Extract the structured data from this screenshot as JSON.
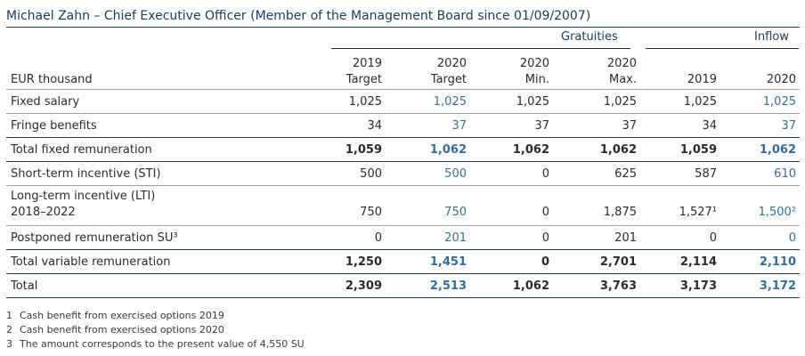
{
  "title": "Michael Zahn – Chief Executive Officer (Member of the Management Board since 01/09/2007)",
  "groups": {
    "gratuities": "Gratuities",
    "inflow": "Inflow"
  },
  "columns": [
    "EUR thousand",
    [
      "2019",
      "Target"
    ],
    [
      "2020",
      "Target"
    ],
    [
      "2020",
      "Min."
    ],
    [
      "2020",
      "Max."
    ],
    "2019",
    "2020"
  ],
  "rows": [
    {
      "label": "Fixed salary",
      "values": [
        "1,025",
        "1,025",
        "1,025",
        "1,025",
        "1,025",
        "1,025"
      ]
    },
    {
      "label": "Fringe benefits",
      "values": [
        "34",
        "37",
        "37",
        "37",
        "34",
        "37"
      ]
    },
    {
      "label": "Total fixed remuneration",
      "values": [
        "1,059",
        "1,062",
        "1,062",
        "1,062",
        "1,059",
        "1,062"
      ]
    },
    {
      "label": "Short-term incentive (STI)",
      "values": [
        "500",
        "500",
        "0",
        "625",
        "587",
        "610"
      ]
    },
    {
      "label_line1": "Long-term incentive (LTI)",
      "label_line2": "2018–2022",
      "values": [
        "750",
        "750",
        "0",
        "1,875",
        "1,527¹",
        "1,500²"
      ]
    },
    {
      "label": "Postponed remuneration SU³",
      "values": [
        "0",
        "201",
        "0",
        "201",
        "0",
        "0"
      ]
    },
    {
      "label": "Total variable remuneration",
      "values": [
        "1,250",
        "1,451",
        "0",
        "2,701",
        "2,114",
        "2,110"
      ]
    },
    {
      "label": "Total",
      "values": [
        "2,309",
        "2,513",
        "1,062",
        "3,763",
        "3,173",
        "3,172"
      ]
    }
  ],
  "footnotes": [
    {
      "n": "1",
      "text": "Cash benefit from exercised options 2019"
    },
    {
      "n": "2",
      "text": "Cash benefit from exercised options 2020"
    },
    {
      "n": "3",
      "text": "The amount corresponds to the present value of 4,550 SU"
    }
  ],
  "colors": {
    "title": "#1b3a57",
    "highlight_column": "#2f6ea5",
    "text": "#2b2b2b"
  }
}
